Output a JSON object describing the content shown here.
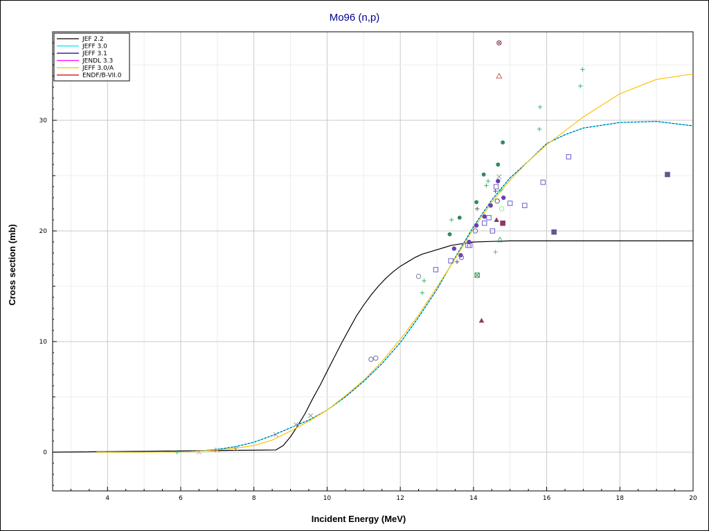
{
  "chart_data": {
    "type": "line",
    "title": "Mo96 (n,p)",
    "title_color": "#00008b",
    "xlabel": "Incident Energy (MeV)",
    "ylabel": "Cross section (mb)",
    "xlim": [
      2.5,
      20
    ],
    "ylim": [
      -3.5,
      38
    ],
    "x_ticks": [
      4,
      6,
      8,
      10,
      12,
      14,
      16,
      18,
      20
    ],
    "y_ticks": [
      0,
      10,
      20,
      30
    ],
    "grid": true,
    "legend_position": "top-left",
    "series": [
      {
        "name": "JEF 2.2",
        "color": "#000000",
        "x": [
          2.5,
          8.6,
          8.8,
          9.0,
          9.2,
          9.4,
          9.6,
          9.8,
          10.0,
          10.2,
          10.4,
          10.6,
          10.8,
          11.0,
          11.2,
          11.4,
          11.6,
          11.8,
          12.0,
          12.2,
          12.4,
          12.6,
          12.8,
          13.0,
          13.2,
          13.4,
          13.6,
          13.8,
          14.0,
          14.5,
          15.0,
          16.0,
          17.0,
          18.0,
          19.0,
          20.0
        ],
        "y": [
          0,
          0.2,
          0.6,
          1.4,
          2.4,
          3.5,
          4.8,
          6.0,
          7.3,
          8.6,
          9.9,
          11.1,
          12.3,
          13.3,
          14.2,
          15.0,
          15.7,
          16.3,
          16.8,
          17.2,
          17.6,
          17.9,
          18.1,
          18.3,
          18.5,
          18.7,
          18.8,
          18.9,
          19.0,
          19.05,
          19.1,
          19.1,
          19.1,
          19.1,
          19.1,
          19.1
        ]
      },
      {
        "name": "JEFF 3.0",
        "color": "#00e5ee",
        "x": [
          3.7,
          5.0,
          6.0,
          6.5,
          7.0,
          7.5,
          8.0,
          8.5,
          9.0,
          9.5,
          10.0,
          10.5,
          11.0,
          11.5,
          12.0,
          12.5,
          13.0,
          13.5,
          14.0,
          14.5,
          15.0,
          15.5,
          16.0,
          16.5,
          17.0,
          18.0,
          19.0,
          20.0
        ],
        "y": [
          0,
          0,
          0.02,
          0.1,
          0.25,
          0.5,
          0.9,
          1.5,
          2.2,
          2.9,
          3.8,
          5.0,
          6.4,
          8.0,
          9.9,
          12.2,
          14.7,
          17.6,
          20.4,
          22.8,
          24.8,
          26.3,
          27.9,
          28.7,
          29.3,
          29.8,
          29.9,
          29.5
        ]
      },
      {
        "name": "JEFF 3.1",
        "color": "#000080",
        "x": [
          3.7,
          5.0,
          6.0,
          6.5,
          7.0,
          7.5,
          8.0,
          8.5,
          9.0,
          9.5,
          10.0,
          10.5,
          11.0,
          11.5,
          12.0,
          12.5,
          13.0,
          13.5,
          14.0,
          14.5,
          15.0,
          15.5,
          16.0,
          16.5,
          17.0,
          18.0,
          19.0,
          20.0
        ],
        "y": [
          0,
          0,
          0.02,
          0.1,
          0.25,
          0.5,
          0.9,
          1.5,
          2.2,
          2.9,
          3.8,
          5.0,
          6.4,
          8.0,
          9.9,
          12.2,
          14.7,
          17.6,
          20.4,
          22.8,
          24.8,
          26.3,
          27.9,
          28.7,
          29.3,
          29.8,
          29.9,
          29.5
        ]
      },
      {
        "name": "JENDL 3.3",
        "color": "#ff00ff",
        "x": [],
        "y": []
      },
      {
        "name": "JEFF 3.0/A",
        "color": "#ffc000",
        "x": [
          3.7,
          5.0,
          6.0,
          6.5,
          7.0,
          7.5,
          8.0,
          8.5,
          9.0,
          9.5,
          10.0,
          10.5,
          11.0,
          11.5,
          12.0,
          12.5,
          13.0,
          13.5,
          14.0,
          14.5,
          15.0,
          15.5,
          16.0,
          17.0,
          18.0,
          19.0,
          20.0
        ],
        "y": [
          0,
          0,
          0.02,
          0.08,
          0.2,
          0.35,
          0.6,
          1.1,
          1.9,
          2.8,
          3.8,
          5.1,
          6.5,
          8.2,
          10.2,
          12.4,
          14.9,
          17.5,
          20.2,
          22.6,
          24.6,
          26.3,
          27.8,
          30.3,
          32.4,
          33.7,
          34.2
        ]
      },
      {
        "name": "ENDF/B-VII.0",
        "color": "#cc0000",
        "x": [],
        "y": []
      }
    ],
    "scatter": [
      {
        "x": 5.9,
        "y": 0.0,
        "m": "plus",
        "c": "#3cb371"
      },
      {
        "x": 6.5,
        "y": 0.0,
        "m": "x",
        "c": "#f4a460"
      },
      {
        "x": 7.0,
        "y": 0.2,
        "m": "x",
        "c": "#999999"
      },
      {
        "x": 7.5,
        "y": 0.3,
        "m": "x",
        "c": "#999999"
      },
      {
        "x": 8.6,
        "y": 1.6,
        "m": "x",
        "c": "#999999"
      },
      {
        "x": 9.15,
        "y": 2.5,
        "m": "x",
        "c": "#999999"
      },
      {
        "x": 9.55,
        "y": 3.3,
        "m": "x",
        "c": "#999999"
      },
      {
        "x": 11.2,
        "y": 8.4,
        "m": "ocircle",
        "c": "#7070a0"
      },
      {
        "x": 11.33,
        "y": 8.5,
        "m": "ocircle",
        "c": "#7070a0"
      },
      {
        "x": 12.5,
        "y": 15.9,
        "m": "ocircle",
        "c": "#8080a0"
      },
      {
        "x": 12.6,
        "y": 14.4,
        "m": "plus",
        "c": "#3cb371"
      },
      {
        "x": 12.65,
        "y": 15.5,
        "m": "plus",
        "c": "#3cb371"
      },
      {
        "x": 12.97,
        "y": 16.5,
        "m": "osquare",
        "c": "#6a5acd"
      },
      {
        "x": 13.38,
        "y": 17.3,
        "m": "osquare",
        "c": "#6a5acd"
      },
      {
        "x": 13.55,
        "y": 17.2,
        "m": "plus",
        "c": "#555555"
      },
      {
        "x": 13.35,
        "y": 19.7,
        "m": "hex",
        "c": "#2e8b57"
      },
      {
        "x": 13.4,
        "y": 21.0,
        "m": "plus",
        "c": "#3cb371"
      },
      {
        "x": 13.47,
        "y": 18.4,
        "m": "dot",
        "c": "#6a3fb5"
      },
      {
        "x": 13.62,
        "y": 21.2,
        "m": "hex",
        "c": "#2e8b57"
      },
      {
        "x": 13.65,
        "y": 17.8,
        "m": "dot",
        "c": "#6a3fb5"
      },
      {
        "x": 13.67,
        "y": 17.6,
        "m": "ocircle",
        "c": "#6a5acd"
      },
      {
        "x": 13.85,
        "y": 18.7,
        "m": "osquare",
        "c": "#6a5acd"
      },
      {
        "x": 13.9,
        "y": 18.7,
        "m": "osquare",
        "c": "#6a5acd"
      },
      {
        "x": 13.88,
        "y": 19.0,
        "m": "dot",
        "c": "#6a3fb5"
      },
      {
        "x": 14.05,
        "y": 20.0,
        "m": "ocircle",
        "c": "#6a5acd"
      },
      {
        "x": 14.08,
        "y": 20.5,
        "m": "dot",
        "c": "#6a3fb5"
      },
      {
        "x": 14.08,
        "y": 22.6,
        "m": "hex",
        "c": "#2e8b57"
      },
      {
        "x": 14.1,
        "y": 22.0,
        "m": "plus",
        "c": "#555555"
      },
      {
        "x": 14.1,
        "y": 16.0,
        "m": "xsquare",
        "c": "#2e8b57"
      },
      {
        "x": 14.22,
        "y": 11.9,
        "m": "triangle",
        "c": "#8b3a62"
      },
      {
        "x": 14.28,
        "y": 25.1,
        "m": "hex",
        "c": "#2e8b57"
      },
      {
        "x": 14.3,
        "y": 20.7,
        "m": "osquare",
        "c": "#6a5acd"
      },
      {
        "x": 14.3,
        "y": 21.3,
        "m": "dot",
        "c": "#6a3fb5"
      },
      {
        "x": 14.35,
        "y": 24.1,
        "m": "plus",
        "c": "#3cb371"
      },
      {
        "x": 14.4,
        "y": 24.5,
        "m": "plus",
        "c": "#3cb371"
      },
      {
        "x": 14.42,
        "y": 21.2,
        "m": "osquare",
        "c": "#6a5acd"
      },
      {
        "x": 14.47,
        "y": 22.3,
        "m": "dot",
        "c": "#6a3fb5"
      },
      {
        "x": 14.52,
        "y": 20.0,
        "m": "osquare",
        "c": "#6a5acd"
      },
      {
        "x": 14.6,
        "y": 23.6,
        "m": "plus",
        "c": "#555555"
      },
      {
        "x": 14.6,
        "y": 18.1,
        "m": "plus",
        "c": "#999999"
      },
      {
        "x": 14.62,
        "y": 24.0,
        "m": "osquare",
        "c": "#6a5acd"
      },
      {
        "x": 14.63,
        "y": 21.0,
        "m": "triangle",
        "c": "#8b3a62"
      },
      {
        "x": 14.65,
        "y": 22.7,
        "m": "ocircle",
        "c": "#555555"
      },
      {
        "x": 14.67,
        "y": 26.0,
        "m": "hex",
        "c": "#2e8b57"
      },
      {
        "x": 14.67,
        "y": 24.5,
        "m": "dot",
        "c": "#6a3fb5"
      },
      {
        "x": 14.7,
        "y": 24.9,
        "m": "x",
        "c": "#999999"
      },
      {
        "x": 14.7,
        "y": 34.0,
        "m": "otriangle",
        "c": "#cd5c5c"
      },
      {
        "x": 14.7,
        "y": 37.0,
        "m": "xcircle",
        "c": "#8b3a62"
      },
      {
        "x": 14.72,
        "y": 19.2,
        "m": "otriangle",
        "c": "#3cb371"
      },
      {
        "x": 14.75,
        "y": 23.7,
        "m": "plus",
        "c": "#3cb371"
      },
      {
        "x": 14.77,
        "y": 22.0,
        "m": "ocircle",
        "c": "#90ee90"
      },
      {
        "x": 14.8,
        "y": 28.0,
        "m": "hex",
        "c": "#2e8b57"
      },
      {
        "x": 14.82,
        "y": 23.0,
        "m": "dot",
        "c": "#6a3fb5"
      },
      {
        "x": 14.8,
        "y": 20.7,
        "m": "square",
        "c": "#8b3a62"
      },
      {
        "x": 15.0,
        "y": 22.5,
        "m": "osquare",
        "c": "#6a5acd"
      },
      {
        "x": 15.4,
        "y": 22.3,
        "m": "osquare",
        "c": "#6a5acd"
      },
      {
        "x": 15.8,
        "y": 29.2,
        "m": "plus",
        "c": "#3cb371"
      },
      {
        "x": 15.82,
        "y": 31.2,
        "m": "plus",
        "c": "#3cb371"
      },
      {
        "x": 15.9,
        "y": 24.4,
        "m": "osquare",
        "c": "#6a5acd"
      },
      {
        "x": 16.2,
        "y": 19.9,
        "m": "square",
        "c": "#5b5b8f"
      },
      {
        "x": 16.6,
        "y": 26.7,
        "m": "osquare",
        "c": "#6a5acd"
      },
      {
        "x": 16.92,
        "y": 33.1,
        "m": "plus",
        "c": "#3cb371"
      },
      {
        "x": 16.98,
        "y": 34.6,
        "m": "plus",
        "c": "#3cb371"
      },
      {
        "x": 19.3,
        "y": 25.1,
        "m": "square",
        "c": "#5b5b8f"
      }
    ]
  }
}
